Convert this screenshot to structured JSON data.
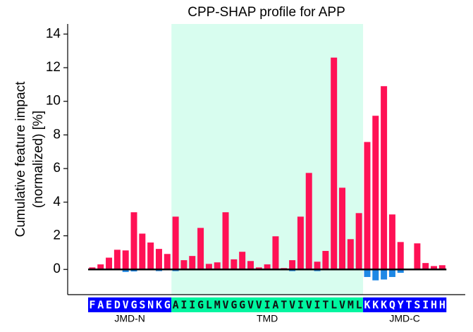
{
  "chart_data": {
    "type": "bar",
    "title": "CPP-SHAP profile for APP",
    "ylabel": [
      "Cumulative feature impact",
      "(normalized) [%]"
    ],
    "segments": [
      {
        "label": "JMD-N",
        "sequence": "FAEDVGSNKG",
        "color": "#0000ff",
        "text_color": "#ffffff"
      },
      {
        "label": "TMD",
        "sequence": "AIIGLMVGGVVIATVIVITLVML",
        "color": "#00f5a0",
        "text_color": "#111111",
        "shade": "#d8fdef"
      },
      {
        "label": "JMD-C",
        "sequence": "KKKQYTSIHH",
        "color": "#0000ff",
        "text_color": "#ffffff"
      }
    ],
    "series": [
      {
        "color": "#ff1155",
        "values": [
          0.12,
          0.3,
          0.7,
          1.17,
          1.13,
          3.4,
          2.13,
          1.6,
          1.22,
          0.92,
          3.14,
          0.55,
          0.8,
          2.47,
          0.33,
          0.42,
          3.4,
          0.6,
          1.05,
          0.5,
          0.12,
          0.3,
          1.97,
          0.08,
          0.55,
          3.14,
          5.74,
          0.46,
          1.1,
          12.6,
          4.86,
          1.8,
          3.35,
          7.58,
          9.14,
          10.9,
          3.27,
          1.63,
          0.04,
          1.55,
          0.38,
          0.2,
          0.25
        ]
      },
      {
        "color": "#1e88e5",
        "values": [
          0,
          0,
          0,
          0,
          -0.15,
          -0.12,
          0,
          0,
          -0.1,
          0,
          -0.1,
          0,
          0,
          0,
          0,
          0,
          0,
          0,
          0,
          0,
          0,
          0,
          0,
          0,
          -0.1,
          0,
          0,
          -0.1,
          0,
          0,
          0,
          0,
          0,
          -0.45,
          -0.65,
          -0.6,
          -0.45,
          -0.2,
          0,
          0,
          -0.05,
          0,
          0
        ]
      }
    ],
    "ylim": [
      -1.5,
      14.6
    ],
    "yticks": [
      0,
      2,
      4,
      6,
      8,
      10,
      12,
      14
    ]
  }
}
